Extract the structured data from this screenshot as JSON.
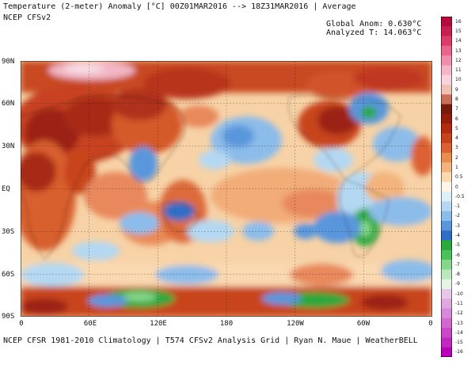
{
  "header": {
    "title": "Temperature (2-meter) Anomaly  [°C] 00Z01MAR2016 --> 18Z31MAR2016 | Average",
    "model": "NCEP CFSv2",
    "global_anom": "Global Anom: 0.630°C",
    "analyzed_t": "Analyzed T: 14.063°C"
  },
  "footer": {
    "text": "NCEP CFSR 1981-2010 Climatology | T574 CFSv2 Analysis Grid | Ryan N. Maue | WeatherBELL"
  },
  "map": {
    "lat_labels": [
      "90N",
      "60N",
      "30N",
      "EQ",
      "30S",
      "60S",
      "90S"
    ],
    "lon_labels": [
      "0",
      "60E",
      "120E",
      "180",
      "120W",
      "60W",
      "0"
    ]
  },
  "colorbar": {
    "labels": [
      "16",
      "15",
      "14",
      "13",
      "12",
      "11",
      "10",
      "9",
      "8",
      "7",
      "6",
      "5",
      "4",
      "3",
      "2",
      "1",
      "0.5",
      "0",
      "-0.5",
      "-1",
      "-2",
      "-3",
      "-4",
      "-5",
      "-6",
      "-7",
      "-8",
      "-9",
      "-10",
      "-11",
      "-12",
      "-13",
      "-14",
      "-15",
      "-16"
    ],
    "colors": [
      "#b50a3c",
      "#c81e50",
      "#dc3c68",
      "#e8648a",
      "#f08cac",
      "#f6b4c8",
      "#f8d2dc",
      "#f0c0b4",
      "#c86e5a",
      "#7a1a0c",
      "#961c0c",
      "#b42a10",
      "#c8421c",
      "#dc6030",
      "#e88c50",
      "#f2b47c",
      "#fad8b0",
      "#fdf6e8",
      "#ddeef8",
      "#b4d8f2",
      "#8cbcea",
      "#5a96dc",
      "#2e6ec4",
      "#2aa83c",
      "#4cc05a",
      "#86d68c",
      "#bce8c0",
      "#e4f4e6",
      "#e8c8e8",
      "#e0a8e0",
      "#d888d8",
      "#d068d0",
      "#c848c8",
      "#c028c0",
      "#b800b8"
    ]
  }
}
